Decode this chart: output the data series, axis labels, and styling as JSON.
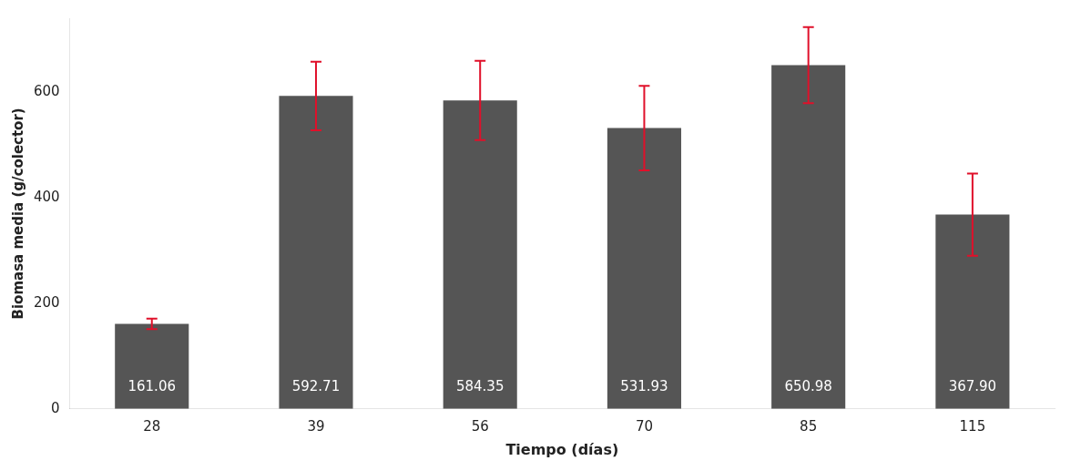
{
  "chart_data": {
    "type": "bar",
    "xlabel": "Tiempo (días)",
    "ylabel": "Biomasa media (g/colector)",
    "categories": [
      "28",
      "39",
      "56",
      "70",
      "85",
      "115"
    ],
    "values": [
      161.06,
      592.71,
      584.35,
      531.93,
      650.98,
      367.9
    ],
    "value_labels": [
      "161.06",
      "592.71",
      "584.35",
      "531.93",
      "650.98",
      "367.90"
    ],
    "errors": [
      10,
      65,
      75,
      80,
      72,
      78
    ],
    "color": "#555555",
    "ylim": [
      0,
      740
    ],
    "yticks": [
      0,
      200,
      400,
      600
    ],
    "grid": false,
    "legend": false
  }
}
